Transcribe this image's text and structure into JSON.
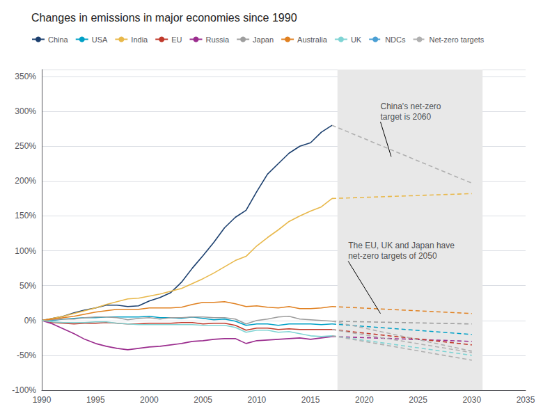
{
  "chart_data": {
    "type": "line",
    "title": "Changes in emissions in major economies since 1990",
    "xlim": [
      1990,
      2035
    ],
    "xticks": [
      1990,
      1995,
      2000,
      2005,
      2010,
      2015,
      2020,
      2025,
      2030,
      2035
    ],
    "ylim": [
      -100,
      360
    ],
    "yticks": [
      {
        "value": -100,
        "label": "-100%"
      },
      {
        "value": -50,
        "label": "-50%"
      },
      {
        "value": 0,
        "label": "0%"
      },
      {
        "value": 50,
        "label": "50%"
      },
      {
        "value": 100,
        "label": "100%"
      },
      {
        "value": 150,
        "label": "150%"
      },
      {
        "value": 200,
        "label": "200%"
      },
      {
        "value": 250,
        "label": "250%"
      },
      {
        "value": 300,
        "label": "300%"
      },
      {
        "value": 350,
        "label": "350%"
      }
    ],
    "grid": true,
    "spans": [
      {
        "start": 2017.5,
        "end": 2031,
        "color": "#e8e8e8"
      }
    ],
    "x": [
      1990,
      1991,
      1992,
      1993,
      1994,
      1995,
      1996,
      1997,
      1998,
      1999,
      2000,
      2001,
      2002,
      2003,
      2004,
      2005,
      2006,
      2007,
      2008,
      2009,
      2010,
      2011,
      2012,
      2013,
      2014,
      2015,
      2016,
      2017
    ],
    "series": [
      {
        "name": "China",
        "color": "#1b3f6e",
        "line_style": "solid",
        "values": [
          0,
          3,
          6,
          11,
          15,
          18,
          22,
          22,
          20,
          21,
          28,
          33,
          40,
          55,
          75,
          93,
          112,
          133,
          148,
          158,
          185,
          210,
          225,
          240,
          250,
          255,
          270,
          280
        ]
      },
      {
        "name": "USA",
        "color": "#00a0c6",
        "line_style": "solid",
        "values": [
          0,
          0,
          2,
          3,
          4,
          4,
          5,
          5,
          5,
          5,
          6,
          4,
          4,
          3,
          5,
          3,
          1,
          2,
          -1,
          -7,
          -5,
          -5,
          -7,
          -5,
          -5,
          -5,
          -6,
          -5
        ]
      },
      {
        "name": "India",
        "color": "#e8b84b",
        "line_style": "solid",
        "values": [
          0,
          3,
          6,
          10,
          14,
          18,
          23,
          27,
          31,
          32,
          35,
          38,
          42,
          46,
          53,
          60,
          68,
          77,
          86,
          92,
          107,
          119,
          130,
          142,
          150,
          157,
          163,
          175
        ]
      },
      {
        "name": "EU",
        "color": "#c0392b",
        "line_style": "solid",
        "values": [
          0,
          -3,
          -4,
          -5,
          -4,
          -4,
          -3,
          -4,
          -5,
          -5,
          -4,
          -4,
          -4,
          -3,
          -3,
          -5,
          -4,
          -4,
          -7,
          -14,
          -11,
          -11,
          -13,
          -12,
          -13,
          -13,
          -13,
          -13
        ]
      },
      {
        "name": "Russia",
        "color": "#9b2d8e",
        "line_style": "solid",
        "values": [
          0,
          -5,
          -12,
          -19,
          -27,
          -33,
          -37,
          -40,
          -42,
          -40,
          -38,
          -37,
          -35,
          -33,
          -30,
          -29,
          -27,
          -26,
          -26,
          -33,
          -29,
          -28,
          -27,
          -26,
          -25,
          -27,
          -25,
          -23
        ]
      },
      {
        "name": "Japan",
        "color": "#9e9e9e",
        "line_style": "solid",
        "values": [
          0,
          1,
          2,
          2,
          4,
          5,
          5,
          4,
          1,
          3,
          4,
          2,
          4,
          4,
          5,
          5,
          4,
          4,
          2,
          -5,
          0,
          2,
          5,
          6,
          2,
          1,
          0,
          -1
        ]
      },
      {
        "name": "Australia",
        "color": "#e08020",
        "line_style": "solid",
        "values": [
          0,
          2,
          4,
          6,
          9,
          12,
          14,
          16,
          16,
          16,
          18,
          18,
          18,
          19,
          23,
          26,
          26,
          27,
          24,
          20,
          21,
          19,
          18,
          20,
          17,
          17,
          18,
          20
        ]
      },
      {
        "name": "UK",
        "color": "#7fd4d4",
        "line_style": "solid",
        "values": [
          0,
          -2,
          -3,
          -3,
          -3,
          -2,
          -2,
          -4,
          -5,
          -6,
          -6,
          -6,
          -6,
          -6,
          -6,
          -7,
          -7,
          -7,
          -10,
          -17,
          -14,
          -14,
          -17,
          -16,
          -19,
          -22,
          -23,
          -22
        ]
      },
      {
        "name": "NDCs",
        "color": "#4a9fd4",
        "line_style": "dashed",
        "colors": [
          "#9e9e9e",
          "#e08020",
          "#00a0c6",
          "#9b2d8e",
          "#c0392b",
          "#7fd4d4",
          "#e8b84b"
        ],
        "x": [
          [
            2017,
            2030
          ],
          [
            2017,
            2030
          ],
          [
            2017,
            2030
          ],
          [
            2017,
            2030
          ],
          [
            2017,
            2030
          ],
          [
            2017,
            2030
          ],
          [
            2017,
            2030
          ]
        ],
        "values": [
          [
            -1,
            -5
          ],
          [
            20,
            10
          ],
          [
            -5,
            -20
          ],
          [
            -23,
            -30
          ],
          [
            -13,
            -35
          ],
          [
            -22,
            -50
          ],
          [
            175,
            182
          ]
        ]
      },
      {
        "name": "Net-zero targets",
        "color": "#b0b0b0",
        "line_style": "dashed",
        "x": [
          [
            2017,
            2030
          ],
          [
            2017,
            2030
          ],
          [
            2017,
            2030
          ],
          [
            2017,
            2030
          ]
        ],
        "values": [
          [
            280,
            197
          ],
          [
            -13,
            -46
          ],
          [
            -22,
            -57
          ],
          [
            -1,
            -44
          ]
        ]
      }
    ],
    "annotations": [
      {
        "text": "China's net-zero\ntarget is 2060",
        "xy": [
          2022.5,
          235
        ],
        "xytext": [
          2021.5,
          285
        ]
      },
      {
        "text": "The EU, UK and Japan have\nnet-zero targets of 2050",
        "xy": [
          2021.5,
          10
        ],
        "xytext": [
          2018.5,
          85
        ]
      }
    ]
  }
}
